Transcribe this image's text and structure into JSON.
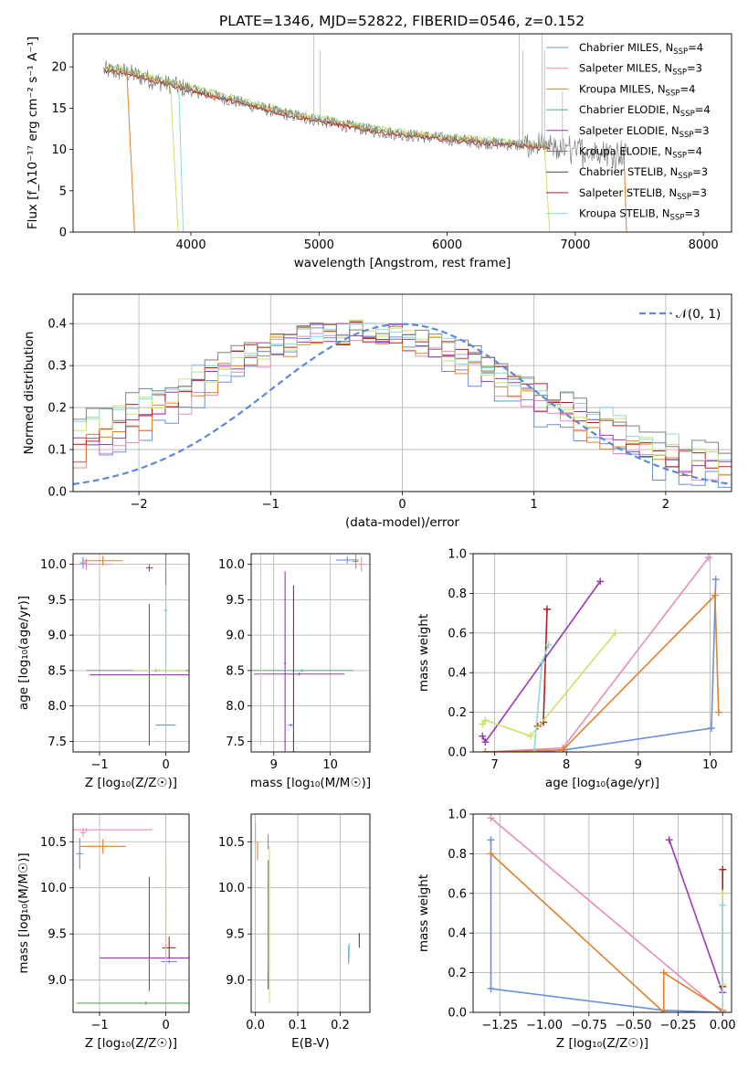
{
  "figure": {
    "title": "PLATE=1346, MJD=52822, FIBERID=0546, z=0.152"
  },
  "colors": {
    "chabrier_miles": "#6a8fdb",
    "salpeter_miles": "#e68bbd",
    "kroupa_miles": "#e1812c",
    "chabrier_elodie": "#55a868",
    "salpeter_elodie": "#9b37b8",
    "kroupa_elodie": "#7f7f7f",
    "chabrier_stelib": "#444444",
    "salpeter_stelib": "#b02020",
    "kroupa_stelib": "#8ed8da",
    "gaussian": "#5b8ad8",
    "yellowgreen": "#c6e36a"
  },
  "chart_data": [
    {
      "id": "spectrum",
      "type": "line",
      "xlabel": "wavelength [Angstrom, rest frame]",
      "ylabel": "Flux [f_λ10⁻¹⁷ erg cm⁻² s⁻¹ A⁻¹]",
      "xlim": [
        3080,
        8220
      ],
      "ylim": [
        0,
        24
      ],
      "xticks": [
        4000,
        5000,
        6000,
        7000,
        8000
      ],
      "yticks": [
        0,
        5,
        10,
        15,
        20
      ],
      "grid": false,
      "legend_position": "upper-right",
      "legend": [
        {
          "label": "Chabrier MILES, N",
          "sub": "SSP",
          "eq": "=4",
          "color": "#6a8fdb"
        },
        {
          "label": "Salpeter MILES, N",
          "sub": "SSP",
          "eq": "=3",
          "color": "#e68bbd"
        },
        {
          "label": "Kroupa MILES, N",
          "sub": "SSP",
          "eq": "=4",
          "color": "#e1812c"
        },
        {
          "label": "Chabrier ELODIE, N",
          "sub": "SSP",
          "eq": "=4",
          "color": "#55a868"
        },
        {
          "label": "Salpeter ELODIE, N",
          "sub": "SSP",
          "eq": "=3",
          "color": "#9b37b8"
        },
        {
          "label": "Kroupa ELODIE, N",
          "sub": "SSP",
          "eq": "=4",
          "color": "#7f7f7f"
        },
        {
          "label": "Chabrier STELIB, N",
          "sub": "SSP",
          "eq": "=3",
          "color": "#444444"
        },
        {
          "label": "Salpeter STELIB, N",
          "sub": "SSP",
          "eq": "=3",
          "color": "#b02020"
        },
        {
          "label": "Kroupa STELIB, N",
          "sub": "SSP",
          "eq": "=3",
          "color": "#8ed8da"
        }
      ],
      "continuum": {
        "x": [
          3320,
          3500,
          3700,
          3900,
          4100,
          4300,
          4500,
          4700,
          4900,
          5100,
          5300,
          5500,
          5700,
          5900,
          6100,
          6300,
          6500,
          6700,
          6900,
          7100,
          7300
        ],
        "y": [
          19.6,
          19.3,
          18.4,
          17.6,
          16.8,
          16.0,
          15.2,
          14.4,
          13.8,
          13.2,
          12.6,
          12.1,
          11.7,
          11.4,
          11.1,
          10.8,
          10.6,
          10.3,
          10.0,
          9.8,
          9.6
        ]
      }
    },
    {
      "id": "residuals",
      "type": "line",
      "xlabel": "(data-model)/error",
      "ylabel": "Normed distribution",
      "xlim": [
        -2.5,
        2.5
      ],
      "ylim": [
        0,
        0.47
      ],
      "xticks": [
        -2,
        -1,
        0,
        1,
        2
      ],
      "xticklabels": [
        "−2",
        "−1",
        "0",
        "1",
        "2"
      ],
      "yticks": [
        0.0,
        0.1,
        0.2,
        0.3,
        0.4
      ],
      "yticklabels": [
        "0.0",
        "0.1",
        "0.2",
        "0.3",
        "0.4"
      ],
      "grid": true,
      "legend_position": "upper-right",
      "gaussian_label": "𝒩(0, 1)",
      "gaussian_mean": 0,
      "gaussian_sigma": 1
    },
    {
      "id": "age_vs_Z",
      "type": "scatter",
      "xlabel": "Z [log₁₀(Z/Z☉)]",
      "ylabel": "age  [log₁₀(age/yr)]",
      "xlim": [
        -1.4,
        0.35
      ],
      "ylim": [
        7.35,
        10.15
      ],
      "xticks": [
        -1,
        0
      ],
      "xticklabels": [
        "−1",
        "0"
      ],
      "yticks": [
        7.5,
        8.0,
        8.5,
        9.0,
        9.5,
        10.0
      ],
      "yticklabels": [
        "7.5",
        "8.0",
        "8.5",
        "9.0",
        "9.5",
        "10.0"
      ],
      "grid": true,
      "points": [
        {
          "x": -1.25,
          "xerr": 0.05,
          "y": 10.02,
          "yerr": 0.08,
          "color": "#6a8fdb"
        },
        {
          "x": -1.2,
          "xerr": 0.4,
          "y": 10.0,
          "yerr": 0.08,
          "color": "#e68bbd"
        },
        {
          "x": -0.95,
          "xerr": 0.3,
          "y": 10.05,
          "yerr": 0.07,
          "color": "#e1812c"
        },
        {
          "x": -0.25,
          "xerr": 0.05,
          "y": 9.95,
          "yerr": 0.05,
          "color": "#9b37b8"
        },
        {
          "x": 0.0,
          "xerr": 0.02,
          "y": 9.35,
          "yerr": 0.8,
          "color": "#55a868"
        },
        {
          "x": -0.25,
          "xerr": 0.9,
          "y": 8.44,
          "yerr": 1.0,
          "color": "#9b37b8"
        },
        {
          "x": -0.15,
          "xerr": 1.05,
          "y": 8.5,
          "yerr": 0.02,
          "color": "#7f7f7f"
        },
        {
          "x": -0.1,
          "xerr": 0.4,
          "y": 8.5,
          "yerr": 0.02,
          "color": "#c6e36a"
        },
        {
          "x": 0.0,
          "xerr": 0.15,
          "y": 7.73,
          "yerr": 0.02,
          "color": "#6a8fdb"
        },
        {
          "x": 0.0,
          "xerr": 0.01,
          "y": 8.6,
          "yerr": 1.1,
          "color": "#8ed8da"
        }
      ]
    },
    {
      "id": "age_vs_mass",
      "type": "scatter",
      "xlabel": "mass [log₁₀(M/M☉)]",
      "ylabel": "",
      "xlim": [
        8.6,
        10.7
      ],
      "ylim": [
        7.35,
        10.15
      ],
      "xticks": [
        9,
        10
      ],
      "xticklabels": [
        "9",
        "10"
      ],
      "yticks": [
        7.5,
        8.0,
        8.5,
        9.0,
        9.5,
        10.0
      ],
      "yticklabels": [
        "7.5",
        "8.0",
        "8.5",
        "9.0",
        "9.5",
        "10.0"
      ],
      "grid": true,
      "points": [
        {
          "x": 10.3,
          "xerr": 0.2,
          "y": 10.06,
          "yerr": 0.05,
          "color": "#6a8fdb"
        },
        {
          "x": 10.45,
          "xerr": 0.05,
          "y": 10.04,
          "yerr": 0.1,
          "color": "#e1812c"
        },
        {
          "x": 10.55,
          "xerr": 0.05,
          "y": 10.0,
          "yerr": 0.1,
          "color": "#e68bbd"
        },
        {
          "x": 9.2,
          "xerr": 0.02,
          "y": 8.6,
          "yerr": 1.3,
          "color": "#9b37b8"
        },
        {
          "x": 9.35,
          "xerr": 0.02,
          "y": 8.5,
          "yerr": 1.2,
          "color": "#b02020"
        },
        {
          "x": 9.5,
          "xerr": 0.9,
          "y": 8.5,
          "yerr": 0.02,
          "color": "#55a868"
        },
        {
          "x": 9.45,
          "xerr": 0.8,
          "y": 8.45,
          "yerr": 0.02,
          "color": "#9b37b8"
        },
        {
          "x": 9.3,
          "xerr": 0.05,
          "y": 7.73,
          "yerr": 0.02,
          "color": "#6a8fdb"
        },
        {
          "x": 8.77,
          "xerr": 0.01,
          "y": 8.8,
          "yerr": 1.35,
          "color": "#c6e36a"
        }
      ]
    },
    {
      "id": "massweight_vs_age",
      "type": "line",
      "xlabel": "age  [log₁₀(age/yr)]",
      "ylabel": "mass weight",
      "xlim": [
        6.7,
        10.3
      ],
      "ylim": [
        0,
        1.0
      ],
      "xticks": [
        7,
        8,
        9,
        10
      ],
      "xticklabels": [
        "7",
        "8",
        "9",
        "10"
      ],
      "yticks": [
        0.0,
        0.2,
        0.4,
        0.6,
        0.8,
        1.0
      ],
      "yticklabels": [
        "0.0",
        "0.2",
        "0.4",
        "0.6",
        "0.8",
        "1.0"
      ],
      "grid": true,
      "series": [
        {
          "color": "#6a8fdb",
          "x": [
            7.55,
            7.97,
            10.02,
            10.08
          ],
          "y": [
            0.0,
            0.01,
            0.12,
            0.87
          ]
        },
        {
          "color": "#e68bbd",
          "x": [
            6.87,
            7.95,
            9.98
          ],
          "y": [
            0.0,
            0.02,
            0.98
          ]
        },
        {
          "color": "#e1812c",
          "x": [
            6.87,
            7.95,
            10.07,
            10.12
          ],
          "y": [
            0.0,
            0.01,
            0.79,
            0.2
          ]
        },
        {
          "color": "#9b37b8",
          "x": [
            6.83,
            6.87,
            8.47
          ],
          "y": [
            0.08,
            0.05,
            0.86
          ]
        },
        {
          "color": "#b02020",
          "x": [
            7.6,
            7.68,
            7.73
          ],
          "y": [
            0.13,
            0.15,
            0.72
          ]
        },
        {
          "color": "#c6e36a",
          "x": [
            6.83,
            6.87,
            7.5,
            8.68
          ],
          "y": [
            0.14,
            0.16,
            0.08,
            0.6
          ]
        },
        {
          "color": "#8ed8da",
          "x": [
            7.55,
            7.66,
            7.75
          ],
          "y": [
            0.0,
            0.45,
            0.54
          ]
        }
      ]
    },
    {
      "id": "mass_vs_Z",
      "type": "scatter",
      "xlabel": "Z [log₁₀(Z/Z☉)]",
      "ylabel": "mass [log₁₀(M/M☉)]",
      "xlim": [
        -1.4,
        0.35
      ],
      "ylim": [
        8.65,
        10.8
      ],
      "xticks": [
        -1,
        0
      ],
      "xticklabels": [
        "−1",
        "0"
      ],
      "yticks": [
        9.0,
        9.5,
        10.0,
        10.5
      ],
      "yticklabels": [
        "9.0",
        "9.5",
        "10.0",
        "10.5"
      ],
      "grid": true,
      "points": [
        {
          "x": -1.25,
          "xerr": 0.05,
          "y": 10.6,
          "yerr": 0.05,
          "color": "#e68bbd"
        },
        {
          "x": -1.2,
          "xerr": 1.0,
          "y": 10.63,
          "yerr": 0.02,
          "color": "#e68bbd"
        },
        {
          "x": -1.3,
          "xerr": 0.05,
          "y": 10.37,
          "yerr": 0.17,
          "color": "#6a8fdb"
        },
        {
          "x": -0.95,
          "xerr": 0.35,
          "y": 10.45,
          "yerr": 0.08,
          "color": "#e1812c"
        },
        {
          "x": -0.25,
          "xerr": 0.01,
          "y": 9.5,
          "yerr": 0.62,
          "color": "#9b37b8"
        },
        {
          "x": 0.0,
          "xerr": 0.01,
          "y": 9.78,
          "yerr": 0.55,
          "color": "#55a868"
        },
        {
          "x": -0.25,
          "xerr": 0.75,
          "y": 9.24,
          "yerr": 0.02,
          "color": "#9b37b8"
        },
        {
          "x": 0.05,
          "xerr": 0.1,
          "y": 9.35,
          "yerr": 0.12,
          "color": "#b02020"
        },
        {
          "x": 0.05,
          "xerr": 0.12,
          "y": 9.2,
          "yerr": 0.02,
          "color": "#6a8fdb"
        },
        {
          "x": -0.3,
          "xerr": 1.05,
          "y": 8.75,
          "yerr": 0.02,
          "color": "#55a868"
        },
        {
          "x": 0.0,
          "xerr": 0.01,
          "y": 9.6,
          "yerr": 0.85,
          "color": "#c6e36a"
        }
      ]
    },
    {
      "id": "mass_vs_EBV",
      "type": "scatter",
      "xlabel": "E(B-V)",
      "ylabel": "",
      "xlim": [
        -0.01,
        0.27
      ],
      "ylim": [
        8.65,
        10.8
      ],
      "xticks": [
        0.0,
        0.1,
        0.2
      ],
      "xticklabels": [
        "0.0",
        "0.1",
        "0.2"
      ],
      "yticks": [
        9.0,
        9.5,
        10.0,
        10.5
      ],
      "yticklabels": [
        "9.0",
        "9.5",
        "10.0",
        "10.5"
      ],
      "grid": true,
      "points": [
        {
          "x": 0.0,
          "y": 10.6,
          "yerr": 0.12,
          "color": "#e68bbd"
        },
        {
          "x": 0.005,
          "y": 10.4,
          "yerr": 0.1,
          "color": "#e1812c"
        },
        {
          "x": 0.03,
          "y": 10.5,
          "yerr": 0.08,
          "color": "#6a8fdb"
        },
        {
          "x": 0.03,
          "y": 9.6,
          "yerr": 0.7,
          "color": "#9b37b8"
        },
        {
          "x": 0.03,
          "y": 9.7,
          "yerr": 0.6,
          "color": "#55a868"
        },
        {
          "x": 0.033,
          "y": 9.6,
          "yerr": 0.85,
          "color": "#c6e36a"
        },
        {
          "x": 0.22,
          "y": 9.28,
          "yerr": 0.1,
          "color": "#6a8fdb"
        },
        {
          "x": 0.222,
          "y": 9.32,
          "yerr": 0.08,
          "color": "#8ed8da"
        },
        {
          "x": 0.245,
          "y": 9.43,
          "yerr": 0.08,
          "color": "#b02020"
        }
      ]
    },
    {
      "id": "massweight_vs_Z",
      "type": "line",
      "xlabel": "Z [log₁₀(Z/Z☉)]",
      "ylabel": "mass weight",
      "xlim": [
        -1.4,
        0.05
      ],
      "ylim": [
        0,
        1.0
      ],
      "xticks": [
        -1.25,
        -1.0,
        -0.75,
        -0.5,
        -0.25,
        0.0
      ],
      "xticklabels": [
        "−1.25",
        "−1.00",
        "−0.75",
        "−0.50",
        "−0.25",
        "0.00"
      ],
      "yticks": [
        0.0,
        0.2,
        0.4,
        0.6,
        0.8,
        1.0
      ],
      "yticklabels": [
        "0.0",
        "0.2",
        "0.4",
        "0.6",
        "0.8",
        "1.0"
      ],
      "grid": true,
      "series": [
        {
          "color": "#6a8fdb",
          "x": [
            -1.3,
            -1.3,
            -0.33,
            0.0
          ],
          "y": [
            0.87,
            0.12,
            0.01,
            0.0
          ]
        },
        {
          "color": "#e68bbd",
          "x": [
            -1.3,
            0.0
          ],
          "y": [
            0.98,
            0.0
          ]
        },
        {
          "color": "#e1812c",
          "x": [
            -1.3,
            -0.33,
            -0.33,
            0.0
          ],
          "y": [
            0.8,
            0.0,
            0.2,
            0.01
          ]
        },
        {
          "color": "#9b37b8",
          "x": [
            -0.3,
            0.0
          ],
          "y": [
            0.87,
            0.1
          ]
        },
        {
          "color": "#b02020",
          "x": [
            0.0,
            0.0
          ],
          "y": [
            0.72,
            0.13
          ]
        },
        {
          "color": "#c6e36a",
          "x": [
            0.0,
            0.0
          ],
          "y": [
            0.6,
            0.14
          ]
        },
        {
          "color": "#8ed8da",
          "x": [
            0.0,
            0.0
          ],
          "y": [
            0.54,
            0.0
          ]
        }
      ]
    }
  ]
}
